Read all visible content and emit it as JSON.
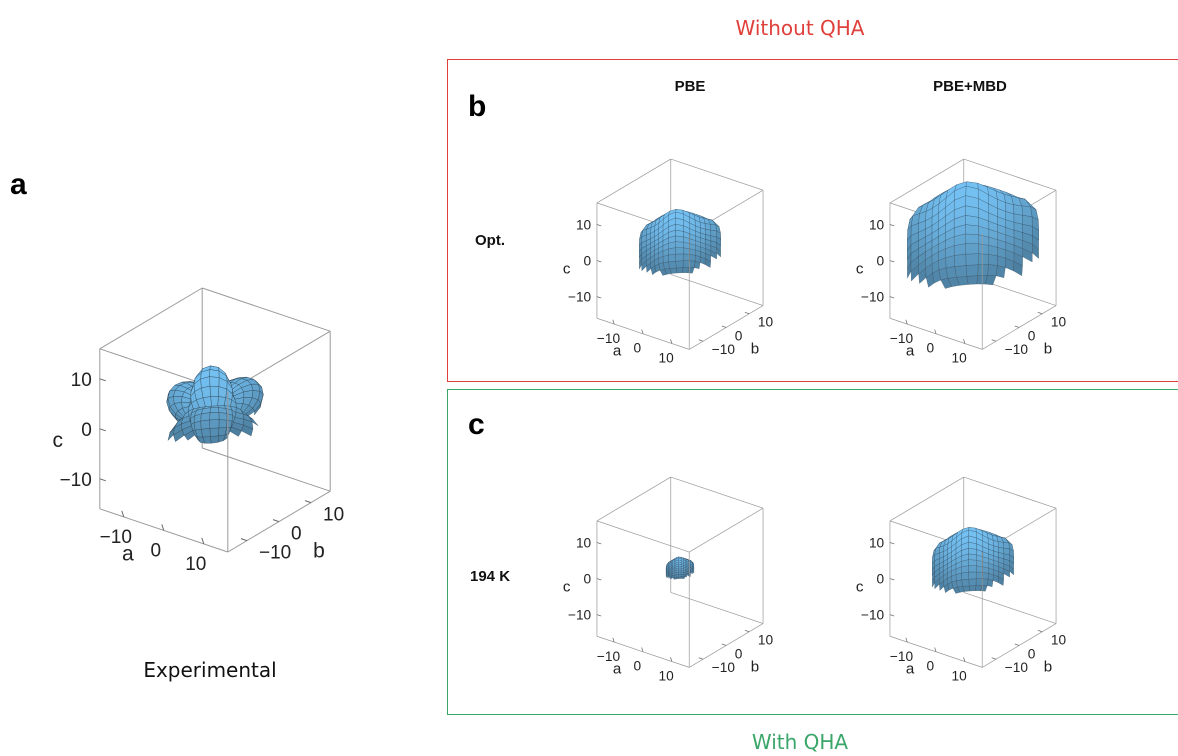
{
  "titles": {
    "without_qha": "Without QHA",
    "with_qha": "With QHA",
    "experimental": "Experimental"
  },
  "colors": {
    "without_qha": "#e0403c",
    "with_qha": "#3aa66a",
    "surface": "#6db5e4",
    "mesh": "#2a3b48"
  },
  "panels": {
    "a": {
      "letter": "a"
    },
    "b": {
      "letter": "b"
    },
    "c": {
      "letter": "c"
    }
  },
  "methods": {
    "pbe": "PBE",
    "pbe_mbd": "PBE+MBD"
  },
  "rows": {
    "opt": "Opt.",
    "k194": "194 K"
  },
  "axes": {
    "a_label": "a",
    "b_label": "b",
    "c_label": "c",
    "ticks": [
      "−10",
      "0",
      "10"
    ]
  },
  "plots": [
    {
      "id": "experimental",
      "shape": "star"
    },
    {
      "id": "pbe-opt",
      "shape": "cube"
    },
    {
      "id": "pbe-mbd-opt",
      "shape": "cube-big"
    },
    {
      "id": "pbe-194k",
      "shape": "cube-tiny"
    },
    {
      "id": "pbe-mbd-194k",
      "shape": "cube"
    }
  ]
}
